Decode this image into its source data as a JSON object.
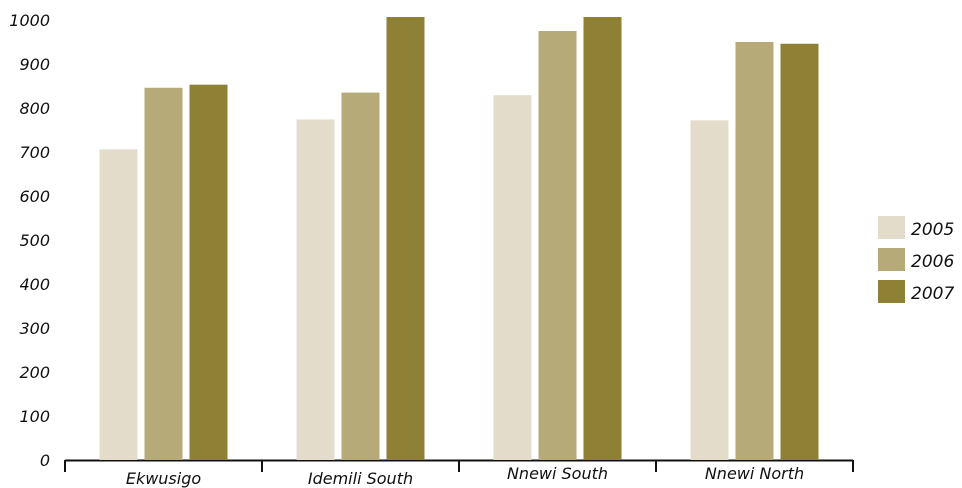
{
  "chart_data": {
    "type": "bar",
    "title": "",
    "xlabel": "",
    "ylabel": "",
    "categories": [
      "Ekwusigo",
      "Idemili South",
      "Nnewi South",
      "Nnewi North"
    ],
    "series": [
      {
        "name": "2005",
        "color": "#e3dccb",
        "values": [
          706,
          774,
          829,
          772
        ]
      },
      {
        "name": "2006",
        "color": "#b6aa78",
        "values": [
          846,
          835,
          975,
          950
        ]
      },
      {
        "name": "2007",
        "color": "#8e8135",
        "values": [
          853,
          1010,
          1010,
          946
        ]
      }
    ],
    "ylim": [
      0,
      1000
    ],
    "yticks": [
      0,
      100,
      200,
      300,
      400,
      500,
      600,
      700,
      800,
      900,
      1000
    ],
    "grid": false,
    "legend_position": "right"
  }
}
